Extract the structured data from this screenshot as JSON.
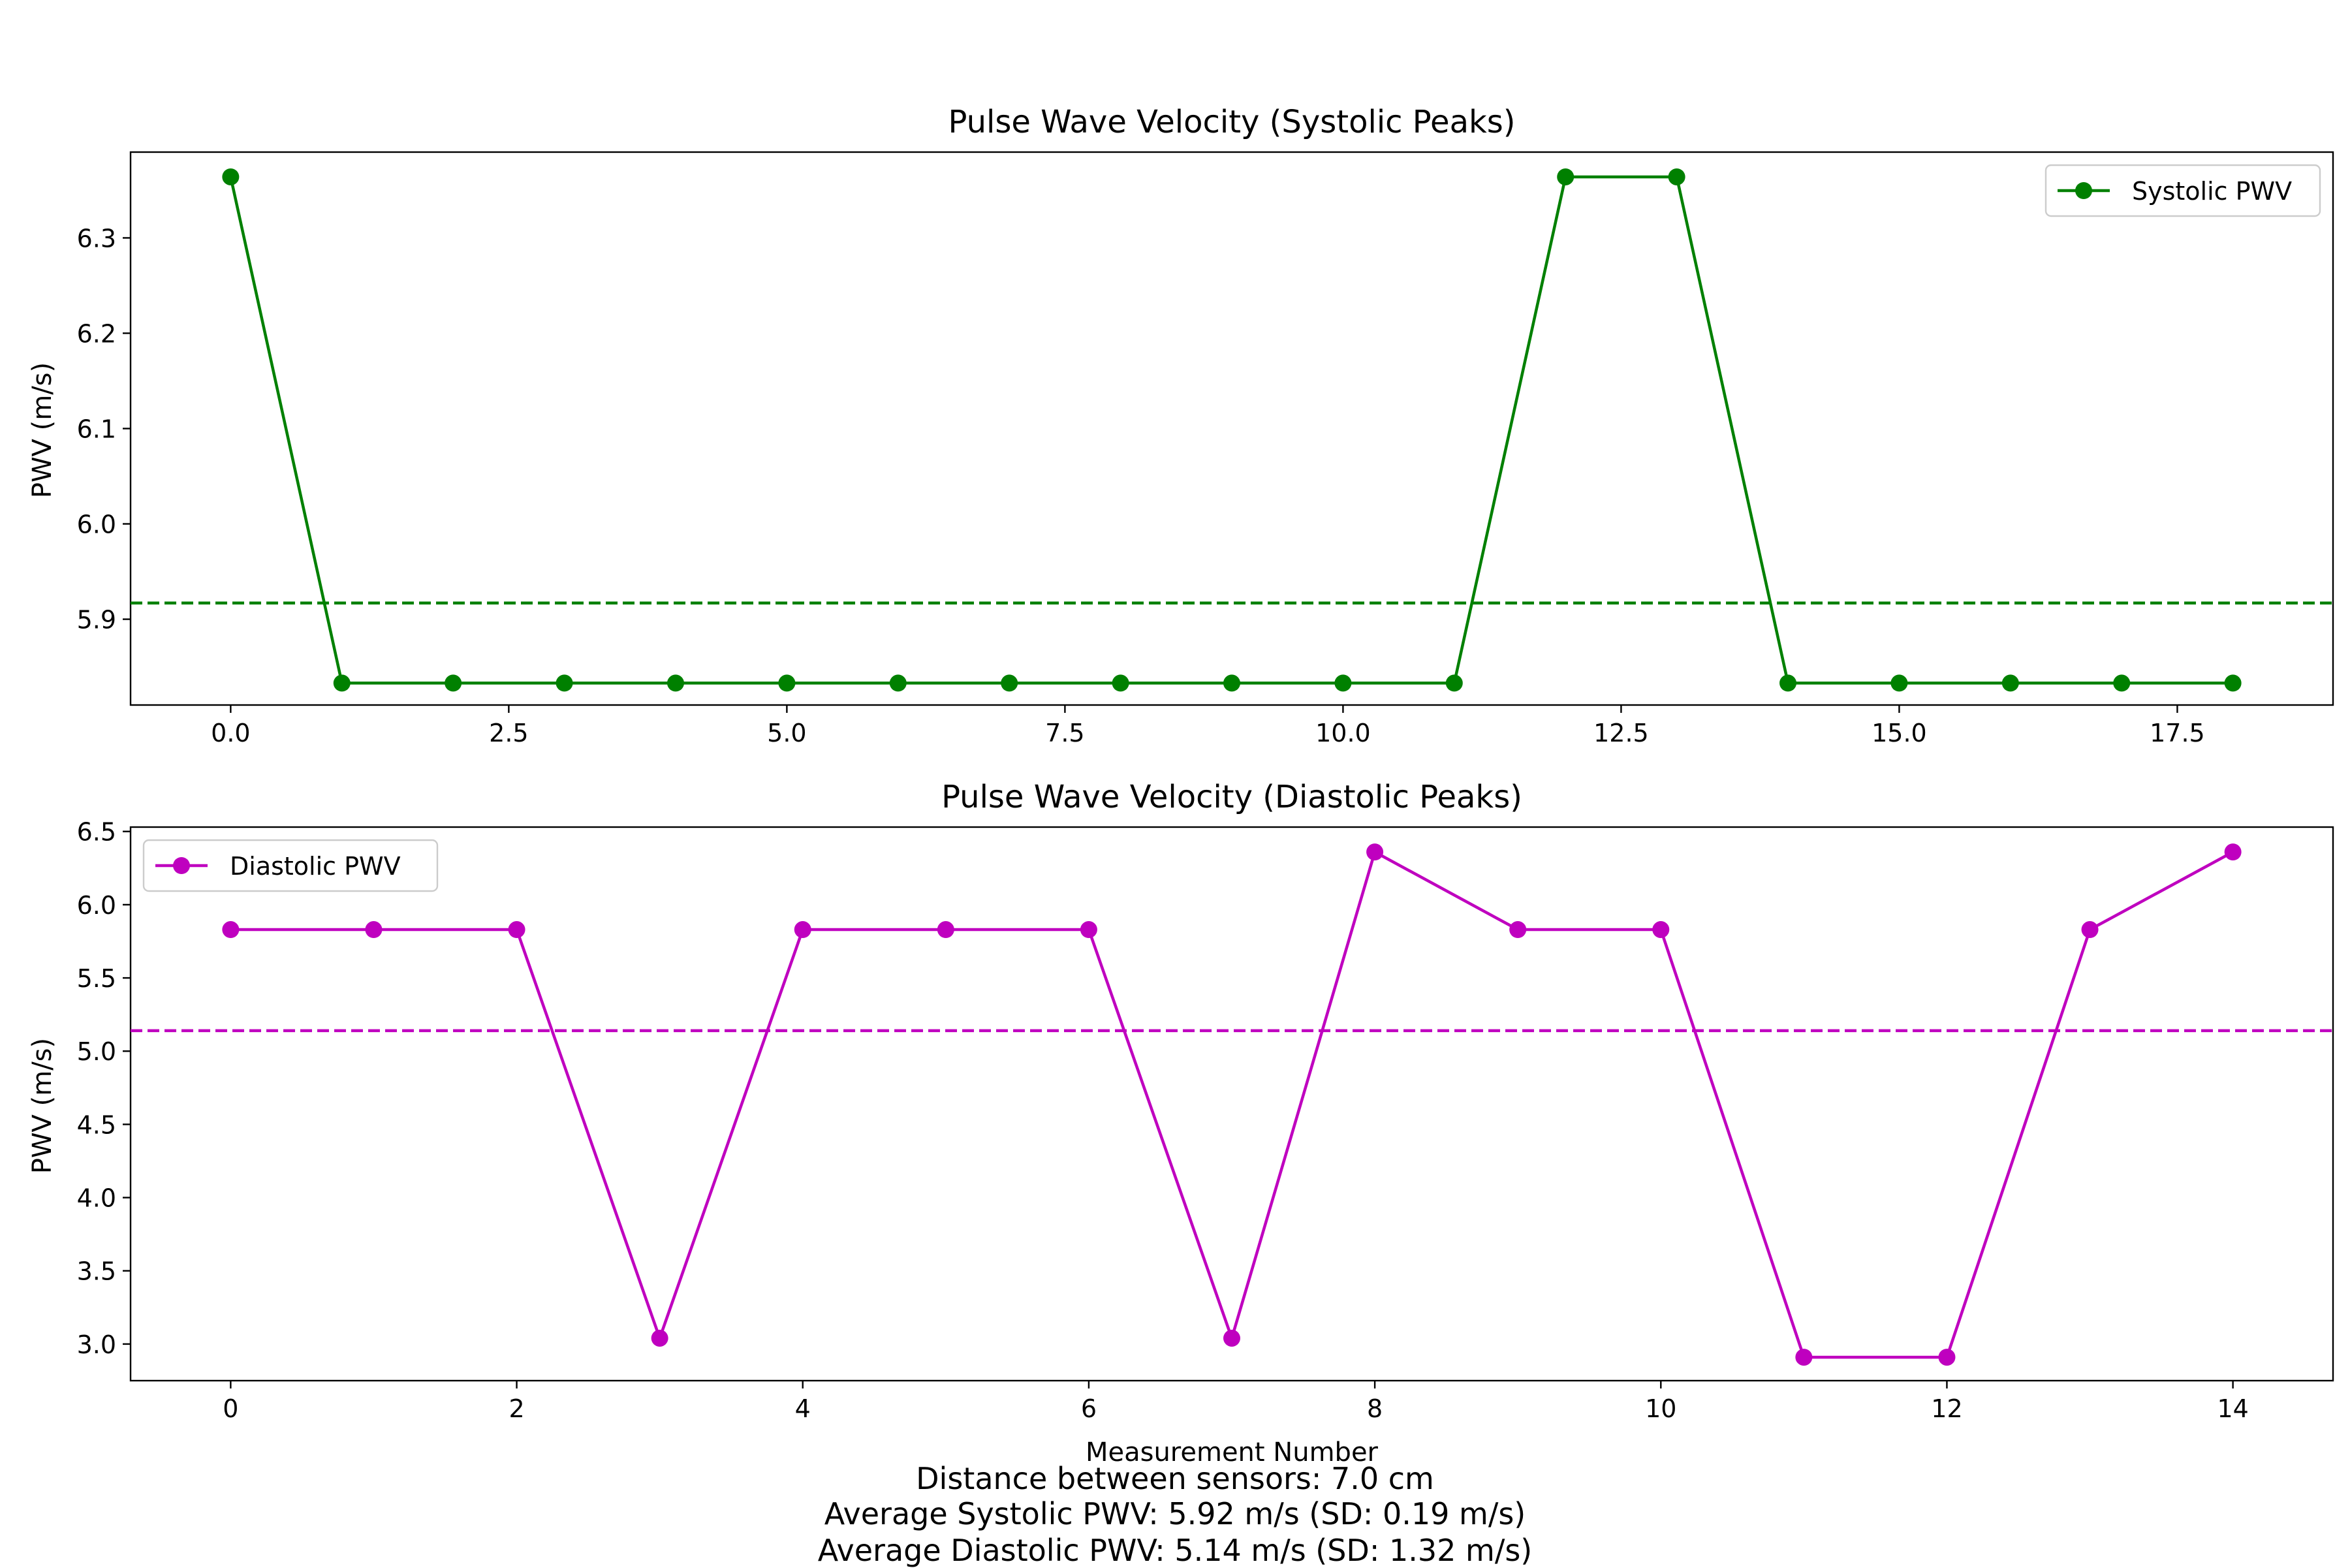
{
  "charts": {
    "systolic": {
      "title": "Pulse Wave Velocity (Systolic Peaks)",
      "ylabel": "PWV (m/s)",
      "xlabel": "",
      "legend_label": "Systolic PWV",
      "legend_loc": "top-right",
      "color": "#008000"
    },
    "diastolic": {
      "title": "Pulse Wave Velocity (Diastolic Peaks)",
      "ylabel": "PWV (m/s)",
      "xlabel": "Measurement Number",
      "legend_label": "Diastolic PWV",
      "legend_loc": "top-left",
      "color": "#BF00BF"
    }
  },
  "footer": {
    "distance": "Distance between sensors: 7.0 cm",
    "avg_systolic": "Average Systolic PWV: 5.92 m/s (SD: 0.19 m/s)",
    "avg_diastolic": "Average Diastolic PWV: 5.14 m/s (SD: 1.32 m/s)"
  },
  "chart_data": [
    {
      "type": "line",
      "title": "Pulse Wave Velocity (Systolic Peaks)",
      "xlabel": "",
      "ylabel": "PWV (m/s)",
      "xlim": [
        -0.9,
        18.9
      ],
      "ylim": [
        5.81,
        6.39
      ],
      "xticks": [
        0,
        2.5,
        5,
        7.5,
        10,
        12.5,
        15,
        17.5
      ],
      "xtick_labels": [
        "0.0",
        "2.5",
        "5.0",
        "7.5",
        "10.0",
        "12.5",
        "15.0",
        "17.5"
      ],
      "yticks": [
        5.9,
        6.0,
        6.1,
        6.2,
        6.3
      ],
      "ytick_labels": [
        "5.9",
        "6.0",
        "6.1",
        "6.2",
        "6.3"
      ],
      "grid": false,
      "legend": "top-right",
      "series": [
        {
          "name": "Systolic PWV",
          "color": "#008000",
          "x": [
            0,
            1,
            2,
            3,
            4,
            5,
            6,
            7,
            8,
            9,
            10,
            11,
            12,
            13,
            14,
            15,
            16,
            17,
            18
          ],
          "y": [
            6.364,
            5.833,
            5.833,
            5.833,
            5.833,
            5.833,
            5.833,
            5.833,
            5.833,
            5.833,
            5.833,
            5.833,
            6.364,
            6.364,
            5.833,
            5.833,
            5.833,
            5.833,
            5.833
          ]
        }
      ],
      "hlines": [
        {
          "y": 5.917,
          "color": "#008000",
          "style": "dashed"
        }
      ]
    },
    {
      "type": "line",
      "title": "Pulse Wave Velocity (Diastolic Peaks)",
      "xlabel": "Measurement Number",
      "ylabel": "PWV (m/s)",
      "xlim": [
        -0.7,
        14.7
      ],
      "ylim": [
        2.75,
        6.53
      ],
      "xticks": [
        0,
        2,
        4,
        6,
        8,
        10,
        12,
        14
      ],
      "xtick_labels": [
        "0",
        "2",
        "4",
        "6",
        "8",
        "10",
        "12",
        "14"
      ],
      "yticks": [
        3.0,
        3.5,
        4.0,
        4.5,
        5.0,
        5.5,
        6.0,
        6.5
      ],
      "ytick_labels": [
        "3.0",
        "3.5",
        "4.0",
        "4.5",
        "5.0",
        "5.5",
        "6.0",
        "6.5"
      ],
      "grid": false,
      "legend": "top-left",
      "series": [
        {
          "name": "Diastolic PWV",
          "color": "#BF00BF",
          "x": [
            0,
            1,
            2,
            3,
            4,
            5,
            6,
            7,
            8,
            9,
            10,
            11,
            12,
            13,
            14
          ],
          "y": [
            5.83,
            5.83,
            5.83,
            3.04,
            5.83,
            5.83,
            5.83,
            3.04,
            6.36,
            5.83,
            5.83,
            2.91,
            2.91,
            5.83,
            6.36
          ]
        }
      ],
      "hlines": [
        {
          "y": 5.14,
          "color": "#BF00BF",
          "style": "dashed"
        }
      ]
    }
  ]
}
